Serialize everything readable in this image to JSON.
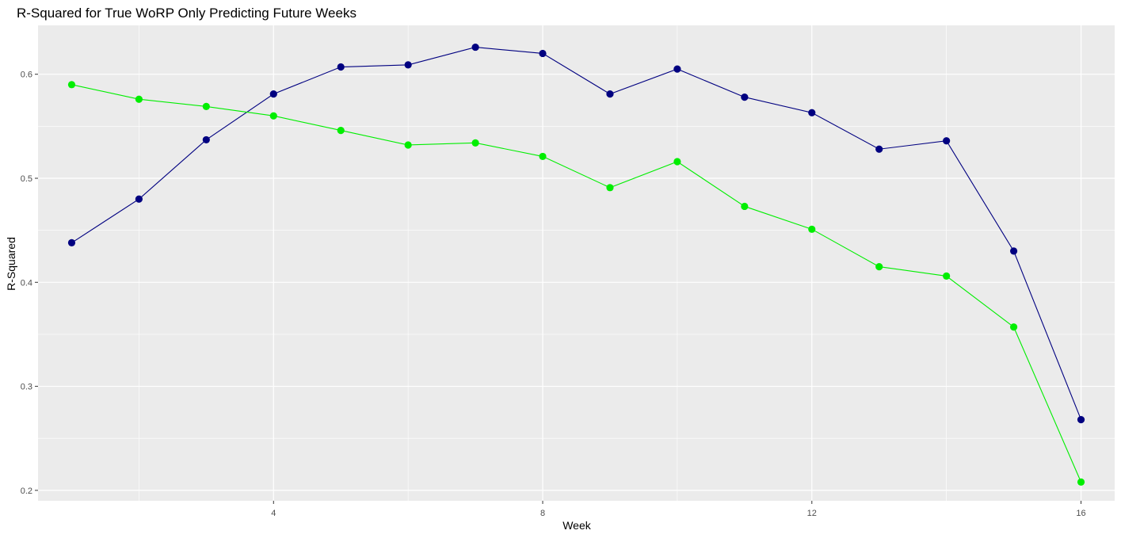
{
  "chart_data": {
    "type": "line",
    "title": "R-Squared for True WoRP Only Predicting Future Weeks",
    "xlabel": "Week",
    "ylabel": "R-Squared",
    "xlim": [
      0.5,
      16.5
    ],
    "ylim": [
      0.19,
      0.647
    ],
    "x_ticks": [
      4,
      8,
      12,
      16
    ],
    "x_tick_labels": [
      "4",
      "8",
      "12",
      "16"
    ],
    "y_ticks": [
      0.2,
      0.3,
      0.4,
      0.5,
      0.6
    ],
    "y_tick_labels": [
      "0.2",
      "0.3",
      "0.4",
      "0.5",
      "0.6"
    ],
    "grid": true,
    "background_color": "#ebebeb",
    "x": [
      1,
      2,
      3,
      4,
      5,
      6,
      7,
      8,
      9,
      10,
      11,
      12,
      13,
      14,
      15,
      16
    ],
    "series": [
      {
        "color": "#000080",
        "values": [
          0.438,
          0.48,
          0.537,
          0.581,
          0.607,
          0.609,
          0.626,
          0.62,
          0.581,
          0.605,
          0.578,
          0.563,
          0.528,
          0.536,
          0.43,
          0.268
        ]
      },
      {
        "color": "#00ee00",
        "values": [
          0.59,
          0.576,
          0.569,
          0.56,
          0.546,
          0.532,
          0.534,
          0.521,
          0.491,
          0.516,
          0.473,
          0.451,
          0.415,
          0.406,
          0.357,
          0.208
        ]
      }
    ]
  }
}
